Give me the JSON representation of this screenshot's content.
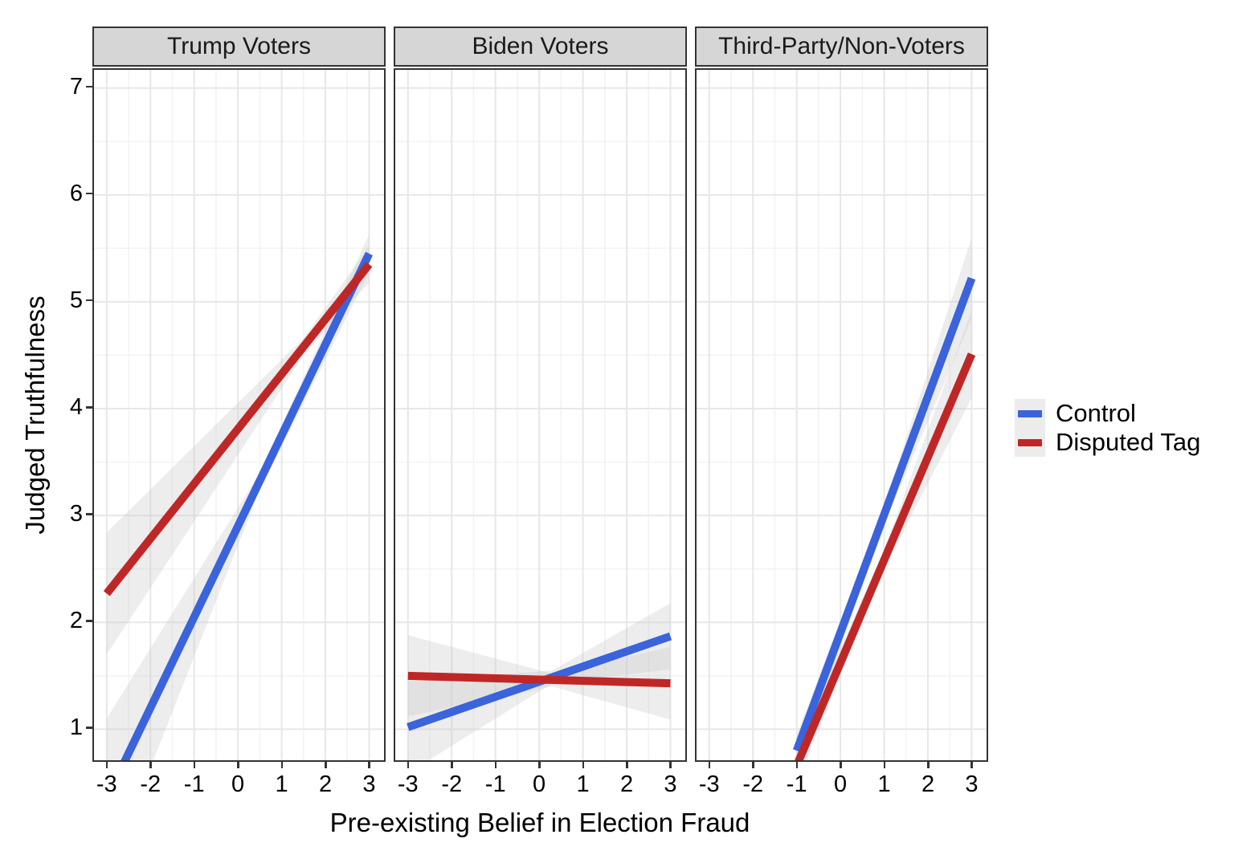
{
  "figure": {
    "y_axis_title": "Judged Truthfulness",
    "x_axis_title": "Pre-existing Belief in Election Fraud",
    "y_ticks": [
      1,
      2,
      3,
      4,
      5,
      6,
      7
    ],
    "x_ticks": [
      -3,
      -2,
      -1,
      0,
      1,
      2,
      3
    ]
  },
  "legend": {
    "position": "right",
    "items": [
      {
        "label": "Control",
        "color": "#3A63DC"
      },
      {
        "label": "Disputed Tag",
        "color": "#BF2727"
      }
    ]
  },
  "style": {
    "strip_background": "#D6D6D6",
    "panel_border": "#333333",
    "major_grid": "#E7E7E7",
    "minor_grid": "#F3F3F3",
    "ci_band": "#CCCCCC"
  },
  "chart_data": {
    "type": "line",
    "xlabel": "Pre-existing Belief in Election Fraud",
    "ylabel": "Judged Truthfulness",
    "xlim": [
      -3.29,
      3.34
    ],
    "ylim": [
      0.71,
      7.17
    ],
    "x_minor_ticks": [
      -2.5,
      -1.5,
      -0.5,
      0.5,
      1.5,
      2.5
    ],
    "y_minor_ticks": [
      1.5,
      2.5,
      3.5,
      4.5,
      5.5,
      6.5
    ],
    "grid": true,
    "legend_position": "right",
    "facets": [
      {
        "title": "Trump Voters",
        "series": [
          {
            "name": "Control",
            "color": "#3A63DC",
            "x": [
              -3,
              3
            ],
            "y": [
              0.35,
              5.45
            ],
            "band": {
              "x": [
                -3,
                0.5,
                3
              ],
              "upper": [
                1.1,
                3.4,
                5.63
              ],
              "lower": [
                -0.4,
                3.24,
                5.27
              ]
            }
          },
          {
            "name": "Disputed Tag",
            "color": "#BF2727",
            "x": [
              -3,
              3
            ],
            "y": [
              2.27,
              5.35
            ],
            "band": {
              "x": [
                -3,
                1.5,
                3
              ],
              "upper": [
                2.84,
                4.66,
                5.52
              ],
              "lower": [
                1.7,
                4.5,
                5.18
              ]
            }
          }
        ]
      },
      {
        "title": "Biden Voters",
        "series": [
          {
            "name": "Control",
            "color": "#3A63DC",
            "x": [
              -3,
              3
            ],
            "y": [
              1.02,
              1.87
            ],
            "band": {
              "x": [
                -3,
                0.3,
                3
              ],
              "upper": [
                1.45,
                1.55,
                2.18
              ],
              "lower": [
                0.59,
                1.43,
                1.56
              ]
            }
          },
          {
            "name": "Disputed Tag",
            "color": "#BF2727",
            "x": [
              -3,
              3
            ],
            "y": [
              1.5,
              1.43
            ],
            "band": {
              "x": [
                -3,
                0.3,
                3
              ],
              "upper": [
                1.88,
                1.52,
                1.77
              ],
              "lower": [
                1.12,
                1.4,
                1.09
              ]
            }
          }
        ]
      },
      {
        "title": "Third-Party/Non-Voters",
        "series": [
          {
            "name": "Control",
            "color": "#3A63DC",
            "x": [
              -1,
              3
            ],
            "y": [
              0.8,
              5.22
            ],
            "band": {
              "x": [
                -1,
                1,
                3
              ],
              "upper": [
                0.95,
                3.1,
                5.6
              ],
              "lower": [
                0.62,
                2.92,
                4.84
              ]
            }
          },
          {
            "name": "Disputed Tag",
            "color": "#BF2727",
            "x": [
              -1,
              3
            ],
            "y": [
              0.66,
              4.51
            ],
            "band": {
              "x": [
                -1,
                1,
                3
              ],
              "upper": [
                0.84,
                2.68,
                4.92
              ],
              "lower": [
                0.5,
                2.5,
                4.1
              ]
            }
          }
        ]
      }
    ]
  }
}
